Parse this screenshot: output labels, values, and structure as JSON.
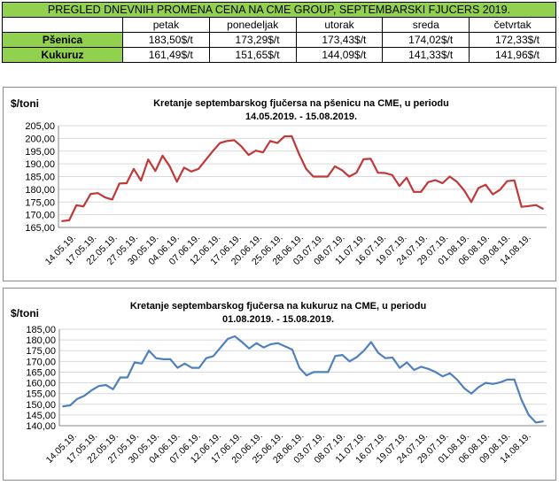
{
  "price_table": {
    "title": "PREGLED DNEVNIH PROMENA CENA NA CME GROUP, SEPTEMBARSKI  FJUCERS 2019.",
    "days": [
      "petak",
      "ponedeljak",
      "utorak",
      "sreda",
      "četvrtak"
    ],
    "rows": [
      {
        "label": "Pšenica",
        "values": [
          "183,50$/t",
          "173,29$/t",
          "173,43$/t",
          "174,02$/t",
          "172,33$/t"
        ]
      },
      {
        "label": "Kukuruz",
        "values": [
          "161,49$/t",
          "151,65$/t",
          "144,09$/t",
          "141,33$/t",
          "141,96$/t"
        ]
      }
    ]
  },
  "chart_data": [
    {
      "type": "line",
      "title_line1": "Kretanje septembarskog fjučersa na  pšenicu na CME, u periodu",
      "title_line2": "14.05.2019. - 15.08.2019.",
      "ylabel": "$/toni",
      "xlabel": "",
      "color": "#c0393a",
      "ylim": [
        165,
        205
      ],
      "yticks": [
        "165,00",
        "170,00",
        "175,00",
        "180,00",
        "185,00",
        "190,00",
        "195,00",
        "200,00",
        "205,00"
      ],
      "grid": true,
      "legend": "none",
      "xtick_labels": [
        "14.05.19.",
        "17.05.19.",
        "22.05.19.",
        "27.05.19.",
        "30.05.19.",
        "04.06.19.",
        "07.06.19.",
        "12.06.19.",
        "17.06.19.",
        "20.06.19.",
        "25.06.19.",
        "28.06.19.",
        "03.07.19.",
        "08.07.19.",
        "11.07.19.",
        "16.07.19.",
        "19.07.19.",
        "24.07.19.",
        "29.07.19.",
        "01.08.19.",
        "06.08.19.",
        "09.08.19.",
        "14.08.19."
      ],
      "values": [
        167.5,
        167.8,
        173.7,
        173.3,
        178.2,
        178.5,
        176.8,
        176.0,
        182.3,
        182.4,
        188.0,
        183.4,
        191.7,
        187.2,
        193.2,
        189.0,
        183.0,
        188.5,
        187.0,
        188.0,
        191.5,
        195.0,
        198.2,
        199.0,
        199.3,
        196.8,
        193.5,
        195.2,
        194.5,
        199.0,
        198.2,
        200.8,
        200.9,
        194.0,
        188.0,
        185.0,
        185.0,
        185.0,
        189.0,
        187.5,
        185.0,
        186.5,
        191.8,
        192.0,
        186.5,
        186.4,
        185.6,
        181.3,
        184.6,
        179.0,
        179.0,
        182.8,
        183.6,
        182.4,
        185.0,
        183.0,
        179.6,
        175.0,
        180.5,
        181.8,
        178.0,
        179.8,
        183.2,
        183.5,
        173.1,
        173.4,
        173.8,
        172.3
      ]
    },
    {
      "type": "line",
      "title_line1": "Kretanje septembarskog fjučersa na  kukuruz na CME, u periodu",
      "title_line2": "01.08.2019. - 15.08.2019.",
      "ylabel": "$/toni",
      "xlabel": "",
      "color": "#4f81bd",
      "ylim": [
        140,
        185
      ],
      "yticks": [
        "140,00",
        "145,00",
        "150,00",
        "155,00",
        "160,00",
        "165,00",
        "170,00",
        "175,00",
        "180,00",
        "185,00"
      ],
      "grid": true,
      "legend": "none",
      "xtick_labels": [
        "14.05.19.",
        "17.05.19.",
        "22.05.19.",
        "27.05.19.",
        "30.05.19.",
        "04.06.19.",
        "07.06.19.",
        "12.06.19.",
        "17.06.19.",
        "20.06.19.",
        "25.06.19.",
        "28.06.19.",
        "03.07.19.",
        "08.07.19.",
        "11.07.19.",
        "16.07.19.",
        "19.07.19.",
        "24.07.19.",
        "29.07.19.",
        "01.08.19.",
        "06.08.19.",
        "09.08.19.",
        "14.08.19."
      ],
      "values": [
        149.0,
        149.5,
        152.5,
        154.0,
        156.5,
        158.5,
        159.0,
        157.0,
        162.5,
        162.5,
        169.5,
        169.0,
        175.0,
        171.5,
        171.0,
        171.0,
        167.0,
        169.0,
        167.0,
        167.0,
        171.5,
        172.5,
        176.5,
        180.5,
        181.7,
        179.0,
        176.0,
        178.5,
        176.5,
        178.0,
        178.5,
        177.0,
        175.5,
        167.0,
        163.5,
        165.0,
        165.0,
        165.0,
        172.5,
        173.0,
        170.0,
        172.0,
        175.0,
        179.0,
        174.0,
        171.5,
        171.8,
        167.0,
        169.5,
        166.0,
        167.5,
        166.5,
        165.0,
        163.0,
        164.5,
        161.5,
        157.5,
        155.0,
        158.0,
        160.0,
        159.5,
        160.2,
        161.5,
        161.5,
        152.0,
        145.0,
        141.5,
        142.0
      ]
    }
  ]
}
